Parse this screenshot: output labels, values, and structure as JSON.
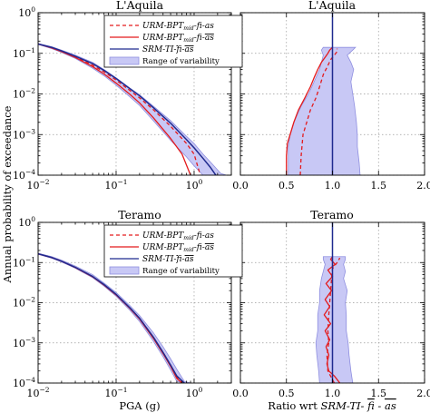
{
  "colors": {
    "red": "#e41a1c",
    "navy": "#1f2a8f",
    "band_fill": "#c8c8f5",
    "band_edge": "#8f8fe0",
    "grid": "#9a9a9a"
  },
  "legend": {
    "entry1": {
      "base": "URM-BPT",
      "sub": "mid",
      "rest": "-fi-as"
    },
    "entry2": {
      "base": "URM-BPT",
      "sub": "mid",
      "rest": "-fi-",
      "over": "as"
    },
    "entry3": {
      "pre": "SRM-TI-",
      "over1": "fi",
      "mid": "-",
      "over2": "as"
    },
    "entry4": {
      "text": "Range of variability"
    }
  },
  "labels": {
    "ylabel": "Annual probability of exceedance",
    "xlabel_left": "PGA (g)",
    "xlabel_right_pre": "Ratio wrt ",
    "xlabel_right_italic": "SRM-TI-",
    "xlabel_right_over1": "fi",
    "xlabel_right_mid": "-",
    "xlabel_right_over2": "as"
  },
  "chart_data": [
    {
      "type": "line",
      "title": "L'Aquila",
      "xscale": "log",
      "yscale": "log",
      "xlim": [
        0.01,
        3
      ],
      "ylim": [
        0.0001,
        1
      ],
      "xticks": [
        "10^-2",
        "10^-1",
        "10^0"
      ],
      "yticks": [
        "10^-4",
        "10^-3",
        "10^-2",
        "10^-1",
        "10^0"
      ],
      "grid": true,
      "legend": "top-right",
      "band": {
        "x": [
          0.01,
          0.015,
          0.02,
          0.03,
          0.05,
          0.07,
          0.1,
          0.15,
          0.2,
          0.3,
          0.5,
          0.8,
          1.0,
          1.3,
          1.7,
          2.2,
          2.6
        ],
        "y_high": [
          0.175,
          0.145,
          0.12,
          0.09,
          0.06,
          0.04,
          0.025,
          0.014,
          0.0095,
          0.005,
          0.0022,
          0.0009,
          0.0006,
          0.00033,
          0.00019,
          0.00011,
          0.0001
        ],
        "y_low": [
          0.165,
          0.13,
          0.105,
          0.075,
          0.043,
          0.028,
          0.0165,
          0.0085,
          0.0052,
          0.0022,
          0.00072,
          0.00028,
          0.00017,
          0.0001,
          0.0001,
          0.0001,
          0.0001
        ]
      },
      "series": [
        {
          "name": "URM-BPT-mid-fi-as (dashed)",
          "color": "red",
          "dash": true,
          "x": [
            0.01,
            0.015,
            0.02,
            0.03,
            0.05,
            0.07,
            0.1,
            0.15,
            0.2,
            0.3,
            0.5,
            0.8,
            1.0,
            1.2
          ],
          "y": [
            0.17,
            0.138,
            0.113,
            0.082,
            0.051,
            0.035,
            0.022,
            0.0122,
            0.008,
            0.0041,
            0.0016,
            0.0006,
            0.00033,
            0.0001
          ]
        },
        {
          "name": "URM-BPT-mid-fi-as-bar (solid)",
          "color": "red",
          "dash": false,
          "x": [
            0.01,
            0.015,
            0.02,
            0.03,
            0.05,
            0.07,
            0.1,
            0.15,
            0.2,
            0.3,
            0.5,
            0.7,
            0.9
          ],
          "y": [
            0.17,
            0.135,
            0.11,
            0.079,
            0.047,
            0.031,
            0.0185,
            0.0098,
            0.006,
            0.0026,
            0.0008,
            0.00033,
            0.0001
          ]
        },
        {
          "name": "SRM-TI-fi-as-bar (solid)",
          "color": "navy",
          "dash": false,
          "x": [
            0.01,
            0.015,
            0.02,
            0.03,
            0.05,
            0.07,
            0.1,
            0.15,
            0.2,
            0.3,
            0.5,
            0.8,
            1.0,
            1.3,
            1.6,
            1.9
          ],
          "y": [
            0.17,
            0.14,
            0.115,
            0.085,
            0.056,
            0.038,
            0.024,
            0.0135,
            0.009,
            0.0046,
            0.0019,
            0.00075,
            0.00047,
            0.00026,
            0.00016,
            0.0001
          ]
        }
      ]
    },
    {
      "type": "line",
      "title": "L'Aquila",
      "xscale": "linear",
      "yscale": "log",
      "xlim": [
        0,
        2.0
      ],
      "ylim": [
        0.0001,
        1
      ],
      "xticks": [
        "0.0",
        "0.5",
        "1.0",
        "1.5",
        "2.0"
      ],
      "grid": true,
      "band": {
        "y": [
          0.0001,
          0.0002,
          0.0005,
          0.001,
          0.002,
          0.005,
          0.01,
          0.02,
          0.04,
          0.06,
          0.09,
          0.12,
          0.14
        ],
        "x_low": [
          0.52,
          0.52,
          0.52,
          0.54,
          0.58,
          0.66,
          0.74,
          0.8,
          0.86,
          0.88,
          0.9,
          0.88,
          0.9
        ],
        "x_high": [
          1.3,
          1.29,
          1.27,
          1.27,
          1.26,
          1.24,
          1.22,
          1.2,
          1.23,
          1.2,
          1.16,
          1.22,
          1.25
        ]
      },
      "series": [
        {
          "name": "ratio URM-BPT-mid-fi-as (dashed)",
          "color": "red",
          "dash": true,
          "y": [
            0.0001,
            0.0003,
            0.001,
            0.002,
            0.004,
            0.008,
            0.015,
            0.03,
            0.05,
            0.07,
            0.09,
            0.11,
            0.13
          ],
          "x": [
            0.65,
            0.66,
            0.68,
            0.72,
            0.76,
            0.82,
            0.86,
            0.9,
            0.95,
            0.98,
            1.02,
            1.05,
            1.05
          ]
        },
        {
          "name": "ratio URM-BPT-mid-fi-as-bar (solid)",
          "color": "red",
          "dash": false,
          "y": [
            0.0001,
            0.0003,
            0.0006,
            0.001,
            0.002,
            0.004,
            0.008,
            0.015,
            0.025,
            0.04,
            0.06,
            0.08,
            0.1,
            0.12,
            0.14
          ],
          "x": [
            0.5,
            0.5,
            0.51,
            0.54,
            0.58,
            0.63,
            0.7,
            0.76,
            0.8,
            0.84,
            0.88,
            0.92,
            0.95,
            0.97,
            1.0
          ]
        },
        {
          "name": "ratio SRM-TI-fi-as-bar (solid)",
          "color": "navy",
          "dash": false,
          "y": [
            0.0001,
            1
          ],
          "x": [
            1.0,
            1.0
          ]
        }
      ]
    },
    {
      "type": "line",
      "title": "Teramo",
      "xscale": "log",
      "yscale": "log",
      "xlim": [
        0.01,
        3
      ],
      "ylim": [
        0.0001,
        1
      ],
      "xticks": [
        "10^-2",
        "10^-1",
        "10^0"
      ],
      "yticks": [
        "10^-4",
        "10^-3",
        "10^-2",
        "10^-1",
        "10^0"
      ],
      "grid": true,
      "legend": "top-right",
      "band": {
        "x": [
          0.01,
          0.015,
          0.02,
          0.03,
          0.05,
          0.07,
          0.1,
          0.15,
          0.2,
          0.3,
          0.4,
          0.5,
          0.6,
          0.75,
          0.9
        ],
        "y_high": [
          0.17,
          0.14,
          0.115,
          0.082,
          0.05,
          0.031,
          0.018,
          0.0085,
          0.0048,
          0.0018,
          0.0008,
          0.0004,
          0.00022,
          0.00011,
          0.0001
        ],
        "y_low": [
          0.16,
          0.128,
          0.103,
          0.072,
          0.042,
          0.026,
          0.0145,
          0.0065,
          0.0034,
          0.0011,
          0.00045,
          0.00021,
          0.00011,
          0.0001,
          0.0001
        ]
      },
      "series": [
        {
          "name": "URM-BPT-mid-fi-as (dashed)",
          "color": "red",
          "dash": true,
          "x": [
            0.01,
            0.015,
            0.02,
            0.03,
            0.05,
            0.07,
            0.1,
            0.15,
            0.2,
            0.3,
            0.4,
            0.5,
            0.6,
            0.7
          ],
          "y": [
            0.165,
            0.133,
            0.108,
            0.076,
            0.045,
            0.028,
            0.016,
            0.0074,
            0.0041,
            0.0014,
            0.00058,
            0.00028,
            0.00014,
            0.0001
          ]
        },
        {
          "name": "URM-BPT-mid-fi-as-bar (solid)",
          "color": "red",
          "dash": false,
          "x": [
            0.01,
            0.015,
            0.02,
            0.03,
            0.05,
            0.07,
            0.1,
            0.15,
            0.2,
            0.3,
            0.4,
            0.5,
            0.6,
            0.7
          ],
          "y": [
            0.164,
            0.132,
            0.107,
            0.075,
            0.044,
            0.0275,
            0.0156,
            0.0072,
            0.0039,
            0.0013,
            0.00054,
            0.00026,
            0.00013,
            0.0001
          ]
        },
        {
          "name": "SRM-TI-fi-as-bar (solid)",
          "color": "navy",
          "dash": false,
          "x": [
            0.01,
            0.015,
            0.02,
            0.03,
            0.05,
            0.07,
            0.1,
            0.15,
            0.2,
            0.3,
            0.4,
            0.5,
            0.6,
            0.75
          ],
          "y": [
            0.165,
            0.133,
            0.108,
            0.076,
            0.045,
            0.0283,
            0.0162,
            0.0075,
            0.0041,
            0.0014,
            0.00058,
            0.00028,
            0.00015,
            0.0001
          ]
        }
      ]
    },
    {
      "type": "line",
      "title": "Teramo",
      "xscale": "linear",
      "yscale": "log",
      "xlim": [
        0,
        2.0
      ],
      "ylim": [
        0.0001,
        1
      ],
      "xticks": [
        "0.0",
        "0.5",
        "1.0",
        "1.5",
        "2.0"
      ],
      "grid": true,
      "band": {
        "y": [
          0.0001,
          0.0002,
          0.0005,
          0.001,
          0.002,
          0.005,
          0.01,
          0.02,
          0.04,
          0.06,
          0.09,
          0.12,
          0.14
        ],
        "x_low": [
          0.86,
          0.85,
          0.83,
          0.82,
          0.84,
          0.84,
          0.86,
          0.86,
          0.88,
          0.9,
          0.92,
          0.9,
          0.9
        ],
        "x_high": [
          1.22,
          1.2,
          1.18,
          1.17,
          1.15,
          1.15,
          1.14,
          1.16,
          1.12,
          1.14,
          1.12,
          1.14,
          1.14
        ]
      },
      "series": [
        {
          "name": "ratio URM-BPT-mid-fi-as (dashed)",
          "color": "red",
          "dash": true,
          "y": [
            0.0001,
            0.0002,
            0.0005,
            0.001,
            0.002,
            0.005,
            0.01,
            0.02,
            0.04,
            0.07,
            0.1,
            0.13
          ],
          "x": [
            1.02,
            0.95,
            0.94,
            0.96,
            0.95,
            0.96,
            0.97,
            0.98,
            0.99,
            1.0,
            1.05,
            1.08
          ]
        },
        {
          "name": "ratio URM-BPT-mid-fi-as-bar (solid)",
          "color": "red",
          "dash": false,
          "y": [
            0.0001,
            0.00015,
            0.0002,
            0.0003,
            0.0005,
            0.0008,
            0.0012,
            0.002,
            0.003,
            0.005,
            0.008,
            0.012,
            0.02,
            0.03,
            0.045,
            0.065,
            0.09,
            0.12,
            0.14
          ],
          "x": [
            1.08,
            1.02,
            0.96,
            0.94,
            0.96,
            0.93,
            0.97,
            0.92,
            0.98,
            0.91,
            0.97,
            0.92,
            0.99,
            0.93,
            1.0,
            0.95,
            1.03,
            0.98,
            1.0
          ]
        },
        {
          "name": "ratio SRM-TI-fi-as-bar (solid)",
          "color": "navy",
          "dash": false,
          "y": [
            0.0001,
            1
          ],
          "x": [
            1.0,
            1.0
          ]
        }
      ]
    }
  ]
}
